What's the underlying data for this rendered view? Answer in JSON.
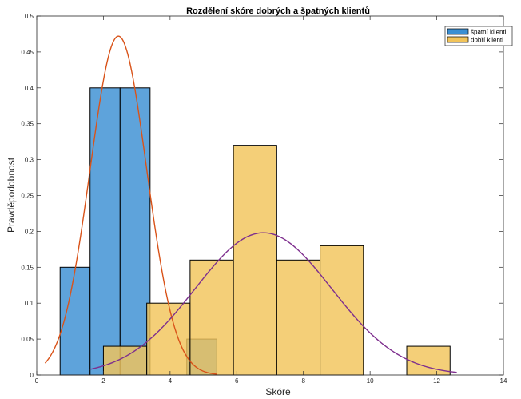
{
  "chart_data": {
    "type": "bar",
    "title": "Rozdělení skóre dobrých a špatných klientů",
    "xlabel": "Skóre",
    "ylabel": "Pravděpodobnost",
    "xlim": [
      0,
      14
    ],
    "ylim": [
      0,
      0.5
    ],
    "xticks": [
      0,
      2,
      4,
      6,
      8,
      10,
      12,
      14
    ],
    "yticks": [
      0,
      0.05,
      0.1,
      0.15,
      0.2,
      0.25,
      0.3,
      0.35,
      0.4,
      0.45,
      0.5
    ],
    "xtick_labels": [
      "0",
      "2",
      "4",
      "6",
      "8",
      "10",
      "12",
      "14"
    ],
    "ytick_labels": [
      "0",
      "0.05",
      "0.1",
      "0.15",
      "0.2",
      "0.25",
      "0.3",
      "0.35",
      "0.4",
      "0.45",
      "0.5"
    ],
    "grid": false,
    "legend_position": "top-right",
    "series": [
      {
        "name": "špatní klienti",
        "color": "#3B8FD3",
        "bins": [
          {
            "x0": 0.7,
            "x1": 1.6,
            "value": 0.15
          },
          {
            "x0": 1.6,
            "x1": 2.5,
            "value": 0.4
          },
          {
            "x0": 2.5,
            "x1": 3.4,
            "value": 0.4
          },
          {
            "x0": 3.4,
            "x1": 4.5,
            "value": 0.0
          },
          {
            "x0": 4.5,
            "x1": 5.4,
            "value": 0.05
          }
        ],
        "fit_curve": {
          "type": "normal",
          "mean": 2.45,
          "std": 0.85,
          "peak": 0.472,
          "x_range": [
            0.25,
            5.4
          ],
          "color": "#D95319"
        }
      },
      {
        "name": "dobří klienti",
        "color": "#F2C45A",
        "bins": [
          {
            "x0": 2.0,
            "x1": 3.3,
            "value": 0.04
          },
          {
            "x0": 3.3,
            "x1": 4.6,
            "value": 0.1
          },
          {
            "x0": 4.6,
            "x1": 5.9,
            "value": 0.16
          },
          {
            "x0": 5.9,
            "x1": 7.2,
            "value": 0.32
          },
          {
            "x0": 7.2,
            "x1": 8.5,
            "value": 0.16
          },
          {
            "x0": 8.5,
            "x1": 9.8,
            "value": 0.18
          },
          {
            "x0": 9.8,
            "x1": 11.1,
            "value": 0.0
          },
          {
            "x0": 11.1,
            "x1": 12.4,
            "value": 0.04
          }
        ],
        "fit_curve": {
          "type": "normal",
          "mean": 6.8,
          "std": 2.05,
          "peak": 0.198,
          "x_range": [
            1.6,
            12.6
          ],
          "color": "#7E2F8E"
        }
      }
    ]
  }
}
